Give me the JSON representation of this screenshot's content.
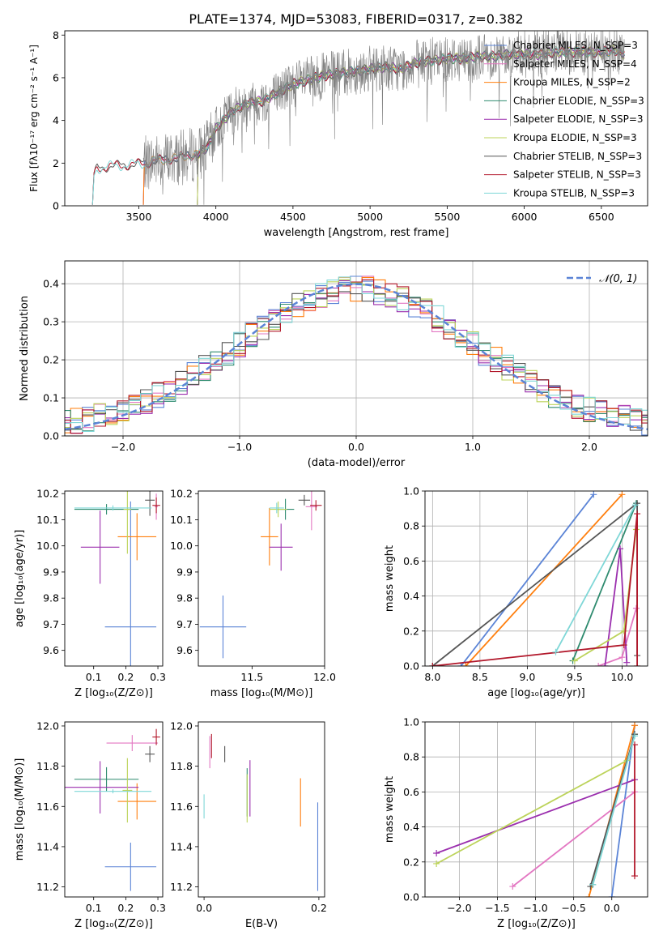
{
  "figure_title": "PLATE=1374, MJD=53083, FIBERID=0317, z=0.382",
  "colors": {
    "Chabrier MILES": "#5b84d6",
    "Salpeter MILES": "#e377c2",
    "Kroupa MILES": "#ff7f0e",
    "Chabrier ELODIE": "#2f8b6f",
    "Salpeter ELODIE": "#9b2fae",
    "Kroupa ELODIE": "#bcd35a",
    "Chabrier STELIB": "#555555",
    "Salpeter STELIB": "#b2182b",
    "Kroupa STELIB": "#7fd7d7",
    "data": "#808080",
    "normal": "#5b84d6"
  },
  "chart_data": [
    {
      "id": "spectrum",
      "type": "line",
      "title": "PLATE=1374, MJD=53083, FIBERID=0317, z=0.382",
      "xlabel": "wavelength [Angstrom, rest frame]",
      "ylabel": "Flux [fλ10⁻¹⁷ erg cm⁻² s⁻¹ A⁻¹]",
      "xlim": [
        3020,
        6800
      ],
      "ylim": [
        0,
        8.2
      ],
      "xticks": [
        3500,
        4000,
        4500,
        5000,
        5500,
        6000,
        6500
      ],
      "yticks": [
        0,
        2,
        4,
        6,
        8
      ],
      "legend_position": "right",
      "legend": [
        "Chabrier MILES, N_SSP=3",
        "Salpeter MILES, N_SSP=4",
        "Kroupa MILES, N_SSP=2",
        "Chabrier ELODIE, N_SSP=3",
        "Salpeter ELODIE, N_SSP=3",
        "Kroupa ELODIE, N_SSP=3",
        "Chabrier STELIB, N_SSP=3",
        "Salpeter STELIB, N_SSP=3",
        "Kroupa STELIB, N_SSP=3"
      ],
      "continuum_points": [
        [
          3200,
          0.05
        ],
        [
          3210,
          1.4
        ],
        [
          3230,
          1.75
        ],
        [
          3300,
          1.85
        ],
        [
          3400,
          1.9
        ],
        [
          3480,
          1.95
        ],
        [
          3550,
          2.0
        ],
        [
          3600,
          2.1
        ],
        [
          3700,
          2.2
        ],
        [
          3800,
          2.3
        ],
        [
          3900,
          2.5
        ],
        [
          3950,
          2.8
        ],
        [
          4000,
          3.6
        ],
        [
          4100,
          4.4
        ],
        [
          4200,
          4.8
        ],
        [
          4300,
          4.9
        ],
        [
          4400,
          5.3
        ],
        [
          4500,
          5.7
        ],
        [
          4600,
          5.9
        ],
        [
          4700,
          6.1
        ],
        [
          4800,
          6.2
        ],
        [
          4900,
          6.3
        ],
        [
          5000,
          6.4
        ],
        [
          5100,
          6.5
        ],
        [
          5200,
          6.4
        ],
        [
          5300,
          6.7
        ],
        [
          5400,
          6.8
        ],
        [
          5500,
          6.9
        ],
        [
          5600,
          6.9
        ],
        [
          5700,
          7.0
        ],
        [
          5800,
          7.0
        ],
        [
          5900,
          7.1
        ],
        [
          6000,
          7.1
        ],
        [
          6100,
          7.1
        ],
        [
          6200,
          7.2
        ],
        [
          6300,
          7.2
        ],
        [
          6400,
          7.2
        ],
        [
          6500,
          7.2
        ],
        [
          6600,
          7.3
        ],
        [
          6650,
          7.1
        ]
      ],
      "model_start": {
        "STELIB": 3200,
        "MILES": 3530,
        "ELODIE": 3880
      },
      "data_start": 3530,
      "data_end": 6650
    },
    {
      "id": "residuals",
      "type": "line",
      "xlabel": "(data-model)/error",
      "ylabel": "Normed distribution",
      "xlim": [
        -2.5,
        2.5
      ],
      "ylim": [
        0,
        0.46
      ],
      "xticks": [
        -2,
        -1,
        0,
        1,
        2
      ],
      "yticks": [
        0.0,
        0.1,
        0.2,
        0.3,
        0.4
      ],
      "grid": true,
      "legend_position": "top-right",
      "legend": [
        "𝒩(0, 1)"
      ],
      "normal": {
        "mean": 0,
        "sigma": 1
      }
    },
    {
      "id": "age_vs_Z",
      "type": "scatter",
      "xlabel": "Z [log₁₀(Z/Z⊙)]",
      "ylabel": "age  [log₁₀(age/yr)]",
      "xlim": [
        0.01,
        0.315
      ],
      "ylim": [
        9.54,
        10.21
      ],
      "xticks": [
        0.1,
        0.2,
        0.3
      ],
      "yticks": [
        9.6,
        9.7,
        9.8,
        9.9,
        10.0,
        10.1,
        10.2
      ],
      "points": [
        {
          "model": "Chabrier MILES",
          "x": 0.215,
          "xe": 0.08,
          "y": 9.69,
          "ye": 0.48
        },
        {
          "model": "Salpeter MILES",
          "x": 0.295,
          "xe": 0.005,
          "y": 10.15,
          "ye": 0.05
        },
        {
          "model": "Kroupa MILES",
          "x": 0.235,
          "xe": 0.06,
          "y": 10.035,
          "ye": 0.09
        },
        {
          "model": "Chabrier ELODIE",
          "x": 0.14,
          "xe": 0.1,
          "y": 10.14,
          "ye": 0.02
        },
        {
          "model": "Salpeter ELODIE",
          "x": 0.12,
          "xe": 0.06,
          "y": 9.995,
          "ye": 0.14
        },
        {
          "model": "Kroupa ELODIE",
          "x": 0.205,
          "xe": 0.012,
          "y": 10.14,
          "ye": 0.17
        },
        {
          "model": "Chabrier STELIB",
          "x": 0.275,
          "xe": 0.015,
          "y": 10.175,
          "ye": 0.06
        },
        {
          "model": "Salpeter STELIB",
          "x": 0.295,
          "xe": 0.012,
          "y": 10.155,
          "ye": 0.03
        },
        {
          "model": "Kroupa STELIB",
          "x": 0.16,
          "xe": 0.12,
          "y": 10.145,
          "ye": 0.01
        }
      ]
    },
    {
      "id": "age_vs_mass",
      "type": "scatter",
      "xlabel": "mass [log₁₀(M/M⊙)]",
      "xlim": [
        11.13,
        12.0
      ],
      "ylim": [
        9.54,
        10.21
      ],
      "xticks": [
        11.5,
        12.0
      ],
      "yticks": [
        9.6,
        9.7,
        9.8,
        9.9,
        10.0,
        10.1,
        10.2
      ],
      "points": [
        {
          "model": "Chabrier MILES",
          "x": 11.3,
          "xe": 0.16,
          "y": 9.69,
          "ye": 0.12
        },
        {
          "model": "Salpeter MILES",
          "x": 11.91,
          "xe": 0.04,
          "y": 10.15,
          "ye": 0.09
        },
        {
          "model": "Kroupa MILES",
          "x": 11.62,
          "xe": 0.06,
          "y": 10.035,
          "ye": 0.11
        },
        {
          "model": "Chabrier ELODIE",
          "x": 11.73,
          "xe": 0.06,
          "y": 10.14,
          "ye": 0.04
        },
        {
          "model": "Salpeter ELODIE",
          "x": 11.7,
          "xe": 0.08,
          "y": 9.995,
          "ye": 0.09
        },
        {
          "model": "Kroupa ELODIE",
          "x": 11.68,
          "xe": 0.06,
          "y": 10.14,
          "ye": 0.03
        },
        {
          "model": "Chabrier STELIB",
          "x": 11.86,
          "xe": 0.04,
          "y": 10.175,
          "ye": 0.02
        },
        {
          "model": "Salpeter STELIB",
          "x": 11.94,
          "xe": 0.04,
          "y": 10.155,
          "ye": 0.02
        },
        {
          "model": "Kroupa STELIB",
          "x": 11.67,
          "xe": 0.05,
          "y": 10.145,
          "ye": 0.02
        }
      ]
    },
    {
      "id": "massweight_vs_age",
      "type": "line",
      "xlabel": "age  [log₁₀(age/yr)]",
      "ylabel": "mass weight",
      "xlim": [
        7.92,
        10.27
      ],
      "ylim": [
        0,
        1.0
      ],
      "xticks": [
        8.0,
        8.5,
        9.0,
        9.5,
        10.0
      ],
      "yticks": [
        0.0,
        0.2,
        0.4,
        0.6,
        0.8,
        1.0
      ],
      "grid": true,
      "series": [
        {
          "model": "Chabrier MILES",
          "x": [
            8.3,
            9.7
          ],
          "y": [
            0.0,
            0.98
          ]
        },
        {
          "model": "Kroupa MILES",
          "x": [
            8.35,
            10.0
          ],
          "y": [
            0.0,
            0.98
          ]
        },
        {
          "model": "Salpeter MILES",
          "x": [
            9.75,
            10.0,
            10.15
          ],
          "y": [
            0.0,
            0.05,
            0.33
          ]
        },
        {
          "model": "Chabrier ELODIE",
          "x": [
            9.48,
            10.15
          ],
          "y": [
            0.03,
            0.93
          ]
        },
        {
          "model": "Salpeter ELODIE",
          "x": [
            9.82,
            9.98,
            10.05
          ],
          "y": [
            0.0,
            0.67,
            0.02
          ]
        },
        {
          "model": "Kroupa ELODIE",
          "x": [
            9.5,
            10.02,
            10.15
          ],
          "y": [
            0.03,
            0.2,
            0.78
          ]
        },
        {
          "model": "Chabrier STELIB",
          "x": [
            8.0,
            10.16,
            10.16
          ],
          "y": [
            0.0,
            0.93,
            0.06
          ]
        },
        {
          "model": "Salpeter STELIB",
          "x": [
            8.0,
            10.02,
            10.16,
            10.16
          ],
          "y": [
            0.0,
            0.12,
            0.87,
            0.0
          ]
        },
        {
          "model": "Kroupa STELIB",
          "x": [
            9.3,
            10.14
          ],
          "y": [
            0.08,
            0.92
          ]
        }
      ]
    },
    {
      "id": "mass_vs_Z",
      "type": "scatter",
      "xlabel": "Z [log₁₀(Z/Z⊙)]",
      "ylabel": "mass [log₁₀(M/M⊙)]",
      "xlim": [
        0.01,
        0.315
      ],
      "ylim": [
        11.15,
        12.02
      ],
      "xticks": [
        0.1,
        0.2,
        0.3
      ],
      "yticks": [
        11.2,
        11.4,
        11.6,
        11.8,
        12.0
      ],
      "points": [
        {
          "model": "Chabrier MILES",
          "x": 0.215,
          "xe": 0.08,
          "y": 11.3,
          "ye": 0.12
        },
        {
          "model": "Salpeter MILES",
          "x": 0.22,
          "xe": 0.08,
          "y": 11.915,
          "ye": 0.04
        },
        {
          "model": "Kroupa MILES",
          "x": 0.235,
          "xe": 0.06,
          "y": 11.625,
          "ye": 0.09
        },
        {
          "model": "Chabrier ELODIE",
          "x": 0.14,
          "xe": 0.1,
          "y": 11.735,
          "ye": 0.06
        },
        {
          "model": "Salpeter ELODIE",
          "x": 0.12,
          "xe": 0.12,
          "y": 11.695,
          "ye": 0.13
        },
        {
          "model": "Kroupa ELODIE",
          "x": 0.205,
          "xe": 0.015,
          "y": 11.68,
          "ye": 0.16
        },
        {
          "model": "Chabrier STELIB",
          "x": 0.275,
          "xe": 0.015,
          "y": 11.86,
          "ye": 0.04
        },
        {
          "model": "Salpeter STELIB",
          "x": 0.295,
          "xe": 0.012,
          "y": 11.945,
          "ye": 0.04
        },
        {
          "model": "Kroupa STELIB",
          "x": 0.16,
          "xe": 0.12,
          "y": 11.675,
          "ye": 0.01
        }
      ]
    },
    {
      "id": "mass_vs_EBV",
      "type": "scatter",
      "xlabel": "E(B-V)",
      "xlim": [
        -0.01,
        0.21
      ],
      "ylim": [
        11.15,
        12.02
      ],
      "xticks": [
        0.0,
        0.2
      ],
      "yticks": [
        11.2,
        11.4,
        11.6,
        11.8,
        12.0
      ],
      "points": [
        {
          "model": "Chabrier MILES",
          "x": 0.198,
          "xe": 0.0,
          "y": 11.4,
          "ye": 0.22
        },
        {
          "model": "Salpeter MILES",
          "x": 0.01,
          "xe": 0.0,
          "y": 11.87,
          "ye": 0.08
        },
        {
          "model": "Kroupa MILES",
          "x": 0.168,
          "xe": 0.0,
          "y": 11.62,
          "ye": 0.12
        },
        {
          "model": "Chabrier ELODIE",
          "x": 0.075,
          "xe": 0.0,
          "y": 11.67,
          "ye": 0.12
        },
        {
          "model": "Salpeter ELODIE",
          "x": 0.08,
          "xe": 0.0,
          "y": 11.69,
          "ye": 0.14
        },
        {
          "model": "Kroupa ELODIE",
          "x": 0.075,
          "xe": 0.0,
          "y": 11.64,
          "ye": 0.12
        },
        {
          "model": "Chabrier STELIB",
          "x": 0.036,
          "xe": 0.0,
          "y": 11.86,
          "ye": 0.04
        },
        {
          "model": "Salpeter STELIB",
          "x": 0.013,
          "xe": 0.0,
          "y": 11.9,
          "ye": 0.06
        },
        {
          "model": "Kroupa STELIB",
          "x": 0.0,
          "xe": 0.0,
          "y": 11.6,
          "ye": 0.06
        }
      ]
    },
    {
      "id": "massweight_vs_Z",
      "type": "line",
      "xlabel": "Z [log₁₀(Z/Z⊙)]",
      "ylabel": "mass weight",
      "xlim": [
        -2.45,
        0.47
      ],
      "ylim": [
        0,
        1.0
      ],
      "xticks": [
        -2.0,
        -1.5,
        -1.0,
        -0.5,
        0.0
      ],
      "yticks": [
        0.0,
        0.2,
        0.4,
        0.6,
        0.8,
        1.0
      ],
      "grid": true,
      "series": [
        {
          "model": "Chabrier MILES",
          "x": [
            0.0,
            0.3
          ],
          "y": [
            0.0,
            0.98
          ]
        },
        {
          "model": "Kroupa MILES",
          "x": [
            -0.3,
            0.3
          ],
          "y": [
            0.0,
            0.98
          ]
        },
        {
          "model": "Salpeter MILES",
          "x": [
            -1.3,
            0.3
          ],
          "y": [
            0.06,
            0.6
          ]
        },
        {
          "model": "Chabrier ELODIE",
          "x": [
            -0.25,
            0.3
          ],
          "y": [
            0.07,
            0.93
          ]
        },
        {
          "model": "Salpeter ELODIE",
          "x": [
            -2.3,
            0.3
          ],
          "y": [
            0.25,
            0.67
          ]
        },
        {
          "model": "Kroupa ELODIE",
          "x": [
            -2.3,
            0.2
          ],
          "y": [
            0.19,
            0.78
          ]
        },
        {
          "model": "Chabrier STELIB",
          "x": [
            -0.28,
            0.3
          ],
          "y": [
            0.06,
            0.93
          ]
        },
        {
          "model": "Salpeter STELIB",
          "x": [
            0.3,
            0.3
          ],
          "y": [
            0.12,
            0.87
          ]
        },
        {
          "model": "Kroupa STELIB",
          "x": [
            -0.25,
            0.3
          ],
          "y": [
            0.07,
            0.92
          ]
        }
      ]
    }
  ]
}
